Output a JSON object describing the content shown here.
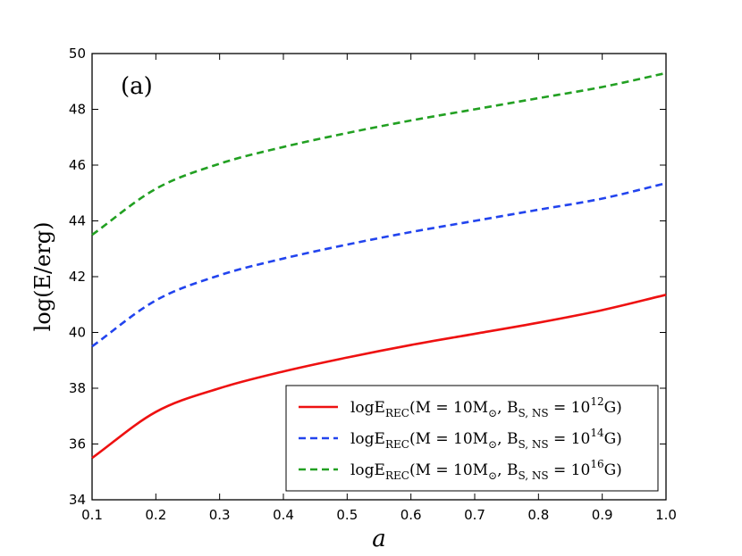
{
  "chart_data": {
    "type": "line",
    "panel_label": "(a)",
    "xlabel": "a",
    "ylabel": "log(E/erg)",
    "xlim": [
      0.1,
      1.0
    ],
    "ylim": [
      34,
      50
    ],
    "xticks": [
      "0.1",
      "0.2",
      "0.3",
      "0.4",
      "0.5",
      "0.6",
      "0.7",
      "0.8",
      "0.9",
      "1.0"
    ],
    "yticks": [
      "34",
      "36",
      "38",
      "40",
      "42",
      "44",
      "46",
      "48",
      "50"
    ],
    "grid": false,
    "legend_position": "bottom-right",
    "x": [
      0.1,
      0.2,
      0.3,
      0.4,
      0.5,
      0.6,
      0.7,
      0.8,
      0.9,
      1.0
    ],
    "series": [
      {
        "name": "logE_REC(M=10M_⊙, B_S,NS=10^12 G)",
        "legend": {
          "base": "logE",
          "sub": "REC",
          "mid": "(M = 10M",
          "msub": "⊙",
          "b": ", B",
          "bsub": "S, NS",
          "eq": " = 10",
          "exp": "12",
          "end": "G)"
        },
        "color": "#ee1111",
        "style": "solid",
        "values": [
          35.5,
          37.15,
          38.0,
          38.6,
          39.1,
          39.55,
          39.95,
          40.35,
          40.8,
          41.35
        ]
      },
      {
        "name": "logE_REC(M=10M_⊙, B_S,NS=10^14 G)",
        "legend": {
          "base": "logE",
          "sub": "REC",
          "mid": "(M = 10M",
          "msub": "⊙",
          "b": ", B",
          "bsub": "S, NS",
          "eq": " = 10",
          "exp": "14",
          "end": "G)"
        },
        "color": "#2244ee",
        "style": "dashed",
        "values": [
          39.5,
          41.15,
          42.05,
          42.65,
          43.15,
          43.6,
          44.0,
          44.4,
          44.8,
          45.35
        ]
      },
      {
        "name": "logE_REC(M=10M_⊙, B_S,NS=10^16 G)",
        "legend": {
          "base": "logE",
          "sub": "REC",
          "mid": "(M = 10M",
          "msub": "⊙",
          "b": ", B",
          "bsub": "S, NS",
          "eq": " = 10",
          "exp": "16",
          "end": "G)"
        },
        "color": "#22a022",
        "style": "dashed",
        "values": [
          43.5,
          45.15,
          46.05,
          46.65,
          47.15,
          47.6,
          48.0,
          48.4,
          48.8,
          49.3
        ]
      }
    ]
  }
}
